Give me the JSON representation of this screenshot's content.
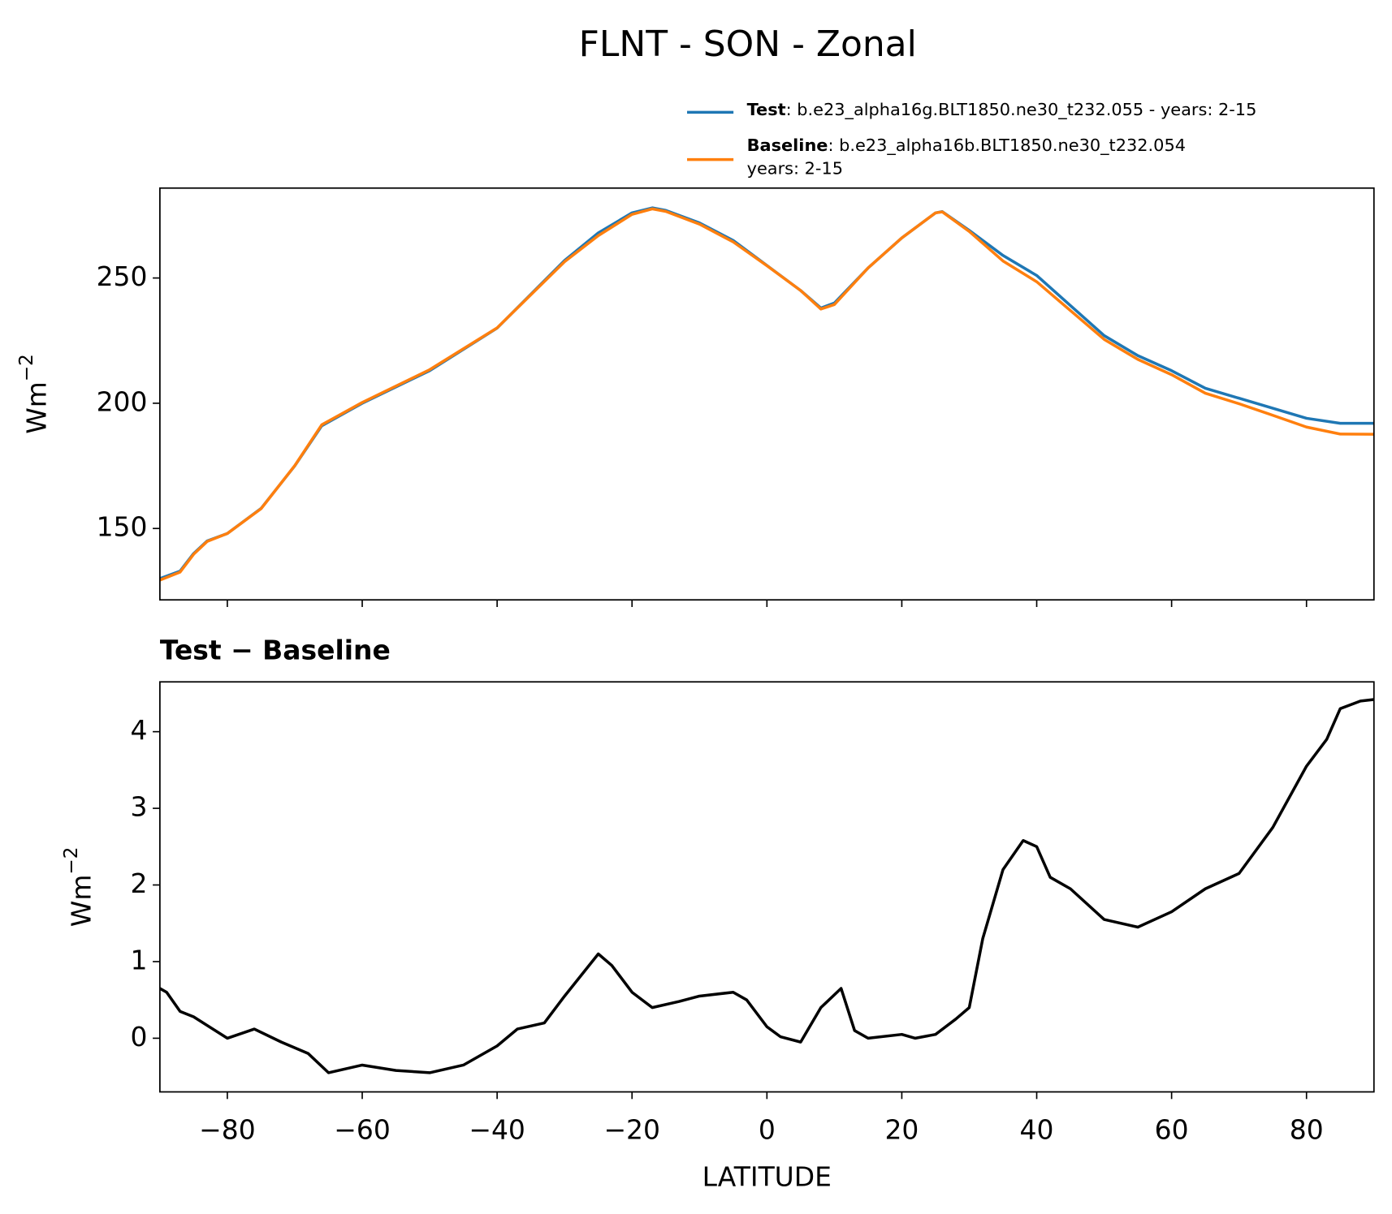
{
  "title": "FLNT - SON - Zonal",
  "chart_data": [
    {
      "type": "line",
      "x": [
        -90,
        -87,
        -85,
        -83,
        -80,
        -75,
        -70,
        -66,
        -60,
        -50,
        -40,
        -30,
        -25,
        -20,
        -17,
        -15,
        -10,
        -5,
        0,
        5,
        8,
        10,
        15,
        20,
        25,
        26,
        30,
        35,
        40,
        45,
        50,
        55,
        60,
        65,
        70,
        75,
        80,
        85,
        90
      ],
      "series": [
        {
          "name": "Test",
          "description": [
            ": b.e23_alpha16g.BLT1850.ne30_t232.055 - years: 2-15"
          ],
          "color": "#1f77b4",
          "values": [
            130,
            133,
            140,
            145,
            148,
            158,
            175,
            191,
            200,
            213,
            230,
            257,
            268,
            276,
            278,
            277,
            272,
            265,
            255,
            245,
            238,
            240,
            254,
            266,
            276,
            276.5,
            269,
            259,
            251,
            239,
            227,
            219,
            213,
            206,
            202,
            198,
            194,
            192,
            192
          ]
        },
        {
          "name": "Baseline",
          "description": [
            ": b.e23_alpha16b.BLT1850.ne30_t232.054",
            "years: 2-15"
          ],
          "color": "#ff7f0e",
          "values": [
            129.4,
            132.6,
            139.7,
            144.8,
            148,
            157.9,
            175.1,
            191.4,
            200.3,
            213.4,
            230.1,
            256.5,
            266.9,
            275.4,
            277.6,
            276.6,
            271.5,
            264.4,
            254.9,
            245,
            237.6,
            239.4,
            254,
            266,
            276,
            276.4,
            268.6,
            256.8,
            248.5,
            237,
            225.5,
            217.5,
            211.4,
            204,
            199.8,
            195.2,
            190.5,
            187.7,
            187.6
          ]
        }
      ],
      "ylabel": "Wm",
      "ylabel_sup": "−2",
      "xlim": [
        -90,
        90
      ],
      "ylim": [
        121.5,
        285.9
      ],
      "yticks": [
        150,
        200,
        250
      ]
    },
    {
      "type": "line",
      "title": "Test − Baseline",
      "xlabel": "LATITUDE",
      "ylabel": "Wm",
      "ylabel_sup": "−2",
      "x": [
        -90,
        -89,
        -87,
        -85,
        -80,
        -76,
        -72,
        -68,
        -65,
        -60,
        -55,
        -50,
        -45,
        -40,
        -37,
        -33,
        -30,
        -25,
        -23,
        -20,
        -17,
        -13,
        -10,
        -5,
        -3,
        0,
        2,
        5,
        8,
        11,
        13,
        15,
        20,
        22,
        25,
        28,
        30,
        32,
        35,
        38,
        40,
        42,
        45,
        50,
        55,
        60,
        65,
        70,
        75,
        80,
        83,
        85,
        88,
        90
      ],
      "series": [
        {
          "color": "#000000",
          "values": [
            0.65,
            0.6,
            0.35,
            0.28,
            0.0,
            0.12,
            -0.05,
            -0.2,
            -0.45,
            -0.35,
            -0.42,
            -0.45,
            -0.35,
            -0.1,
            0.12,
            0.2,
            0.55,
            1.1,
            0.95,
            0.6,
            0.4,
            0.48,
            0.55,
            0.6,
            0.5,
            0.15,
            0.02,
            -0.05,
            0.4,
            0.65,
            0.1,
            0.0,
            0.05,
            0.0,
            0.05,
            0.25,
            0.4,
            1.3,
            2.2,
            2.58,
            2.5,
            2.1,
            1.95,
            1.55,
            1.45,
            1.65,
            1.95,
            2.15,
            2.75,
            3.55,
            3.9,
            4.3,
            4.4,
            4.42
          ]
        }
      ],
      "xlim": [
        -90,
        90
      ],
      "ylim": [
        -0.7,
        4.65
      ],
      "yticks": [
        0,
        1,
        2,
        3,
        4
      ],
      "xticks": [
        {
          "value": -80,
          "label": "−80"
        },
        {
          "value": -60,
          "label": "−60"
        },
        {
          "value": -40,
          "label": "−40"
        },
        {
          "value": -20,
          "label": "−20"
        },
        0,
        20,
        40,
        60,
        80
      ]
    }
  ]
}
